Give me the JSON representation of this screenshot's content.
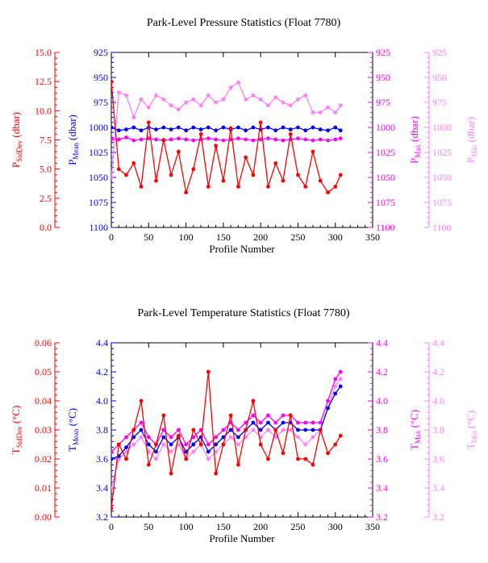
{
  "chart_data": [
    {
      "type": "line",
      "title": "Park-Level Pressure Statistics (Float 7780)",
      "xlabel": "Profile Number",
      "xlim": [
        0,
        350
      ],
      "xticks": [
        0,
        50,
        100,
        150,
        200,
        250,
        300,
        350
      ],
      "grid": false,
      "legend": "none",
      "axes": [
        {
          "key": "std",
          "side": "left-outer",
          "label_main": "P",
          "label_sub": "StdDev",
          "label_unit": " (dbar)",
          "range": [
            0,
            15
          ],
          "inverted": false,
          "ticks": [
            "0.0",
            "2.5",
            "5.0",
            "7.5",
            "10.0",
            "12.5",
            "15.0"
          ],
          "color": "#ff0000"
        },
        {
          "key": "mean",
          "side": "left-inner",
          "label_main": "P",
          "label_sub": "Mean",
          "label_unit": " (dbar)",
          "range": [
            925,
            1100
          ],
          "inverted": true,
          "ticks": [
            "925",
            "950",
            "975",
            "1000",
            "1025",
            "1050",
            "1075",
            "1100"
          ],
          "color": "#0000ff"
        },
        {
          "key": "max",
          "side": "right-inner",
          "label_main": "P",
          "label_sub": "Max",
          "label_unit": " (dbar)",
          "range": [
            925,
            1100
          ],
          "inverted": true,
          "ticks": [
            "925",
            "950",
            "975",
            "1000",
            "1025",
            "1050",
            "1075",
            "1100"
          ],
          "color": "#ff00ff"
        },
        {
          "key": "min",
          "side": "right-outer",
          "label_main": "P",
          "label_sub": "Min",
          "label_unit": " (dbar)",
          "range": [
            925,
            1100
          ],
          "inverted": true,
          "ticks": [
            "925",
            "950",
            "975",
            "1000",
            "1025",
            "1050",
            "1075",
            "1100"
          ],
          "color": "#ff80ff"
        }
      ],
      "series": [
        {
          "axis": "min",
          "color": "#ff80ff",
          "x": [
            0,
            10,
            20,
            30,
            40,
            50,
            60,
            70,
            80,
            90,
            100,
            110,
            120,
            130,
            140,
            150,
            160,
            170,
            180,
            190,
            200,
            210,
            220,
            230,
            240,
            250,
            260,
            270,
            280,
            290,
            300,
            307
          ],
          "values": [
            1050,
            965,
            968,
            990,
            972,
            980,
            968,
            972,
            978,
            982,
            975,
            972,
            978,
            968,
            975,
            972,
            960,
            955,
            972,
            968,
            972,
            978,
            970,
            975,
            978,
            972,
            968,
            985,
            985,
            980,
            985,
            978
          ]
        },
        {
          "axis": "mean",
          "color": "#0000ff",
          "x": [
            0,
            10,
            20,
            30,
            40,
            50,
            60,
            70,
            80,
            90,
            100,
            110,
            120,
            130,
            140,
            150,
            160,
            170,
            180,
            190,
            200,
            210,
            220,
            230,
            240,
            250,
            260,
            270,
            280,
            290,
            300,
            307
          ],
          "values": [
            1000,
            1003,
            1002,
            1000,
            1003,
            1000,
            1002,
            1000,
            1002,
            1000,
            1003,
            1000,
            1002,
            1000,
            1003,
            1000,
            1002,
            1000,
            1003,
            1000,
            1002,
            1000,
            1003,
            1000,
            1002,
            1000,
            1003,
            1000,
            1002,
            1003,
            1000,
            1003
          ]
        },
        {
          "axis": "max",
          "color": "#ff00ff",
          "x": [
            0,
            10,
            20,
            30,
            40,
            50,
            60,
            70,
            80,
            90,
            100,
            110,
            120,
            130,
            140,
            150,
            160,
            170,
            180,
            190,
            200,
            210,
            220,
            230,
            240,
            250,
            260,
            270,
            280,
            290,
            300,
            307
          ],
          "values": [
            1012,
            1012,
            1010,
            1013,
            1012,
            1011,
            1012,
            1013,
            1012,
            1011,
            1012,
            1013,
            1012,
            1011,
            1012,
            1013,
            1012,
            1011,
            1012,
            1013,
            1012,
            1011,
            1012,
            1013,
            1012,
            1011,
            1012,
            1013,
            1012,
            1013,
            1012,
            1011
          ]
        },
        {
          "axis": "std",
          "color": "#ff0000",
          "x": [
            0,
            10,
            20,
            30,
            40,
            50,
            60,
            70,
            80,
            90,
            100,
            110,
            120,
            130,
            140,
            150,
            160,
            170,
            180,
            190,
            200,
            210,
            220,
            230,
            240,
            250,
            260,
            270,
            280,
            290,
            300,
            307
          ],
          "values": [
            12.5,
            5.0,
            4.5,
            5.5,
            3.5,
            9.0,
            4.0,
            7.5,
            4.5,
            6.5,
            3.0,
            5.0,
            8.0,
            3.5,
            7.0,
            4.0,
            8.5,
            3.5,
            6.0,
            4.5,
            9.0,
            3.5,
            5.5,
            4.0,
            8.0,
            4.5,
            3.5,
            6.5,
            4.0,
            3.0,
            3.5,
            4.5
          ]
        }
      ]
    },
    {
      "type": "line",
      "title": "Park-Level Temperature Statistics (Float 7780)",
      "xlabel": "Profile Number",
      "xlim": [
        0,
        350
      ],
      "xticks": [
        0,
        50,
        100,
        150,
        200,
        250,
        300,
        350
      ],
      "grid": false,
      "legend": "none",
      "axes": [
        {
          "key": "std",
          "side": "left-outer",
          "label_main": "T",
          "label_sub": "StdDev",
          "label_unit": " (°C)",
          "range": [
            0,
            0.06
          ],
          "inverted": false,
          "ticks": [
            "0.00",
            "0.01",
            "0.02",
            "0.03",
            "0.04",
            "0.05",
            "0.06"
          ],
          "color": "#ff0000"
        },
        {
          "key": "mean",
          "side": "left-inner",
          "label_main": "T",
          "label_sub": "Mean",
          "label_unit": " (°C)",
          "range": [
            3.2,
            4.4
          ],
          "inverted": false,
          "ticks": [
            "3.2",
            "3.4",
            "3.6",
            "3.8",
            "4.0",
            "4.2",
            "4.4"
          ],
          "color": "#0000ff"
        },
        {
          "key": "max",
          "side": "right-inner",
          "label_main": "T",
          "label_sub": "Max",
          "label_unit": " (°C)",
          "range": [
            3.2,
            4.4
          ],
          "inverted": false,
          "ticks": [
            "3.2",
            "3.4",
            "3.6",
            "3.8",
            "4.0",
            "4.2",
            "4.4"
          ],
          "color": "#ff00ff"
        },
        {
          "key": "min",
          "side": "right-outer",
          "label_main": "T",
          "label_sub": "Min",
          "label_unit": " (°C)",
          "range": [
            3.2,
            4.4
          ],
          "inverted": false,
          "ticks": [
            "3.2",
            "3.4",
            "3.6",
            "3.8",
            "4.0",
            "4.2",
            "4.4"
          ],
          "color": "#ff80ff"
        }
      ],
      "series": [
        {
          "axis": "min",
          "color": "#ff80ff",
          "x": [
            0,
            10,
            20,
            30,
            40,
            50,
            60,
            70,
            80,
            90,
            100,
            110,
            120,
            130,
            140,
            150,
            160,
            170,
            180,
            190,
            200,
            210,
            220,
            230,
            240,
            250,
            260,
            270,
            280,
            290,
            300,
            307
          ],
          "values": [
            3.4,
            3.6,
            3.65,
            3.7,
            3.75,
            3.65,
            3.6,
            3.7,
            3.65,
            3.7,
            3.6,
            3.65,
            3.7,
            3.6,
            3.65,
            3.7,
            3.75,
            3.7,
            3.75,
            3.8,
            3.75,
            3.8,
            3.75,
            3.8,
            3.8,
            3.75,
            3.7,
            3.75,
            3.8,
            3.95,
            4.1,
            4.15
          ]
        },
        {
          "axis": "mean",
          "color": "#0000ff",
          "x": [
            0,
            10,
            20,
            30,
            40,
            50,
            60,
            70,
            80,
            90,
            100,
            110,
            120,
            130,
            140,
            150,
            160,
            170,
            180,
            190,
            200,
            210,
            220,
            230,
            240,
            250,
            260,
            270,
            280,
            290,
            300,
            307
          ],
          "values": [
            3.6,
            3.62,
            3.68,
            3.75,
            3.8,
            3.7,
            3.65,
            3.75,
            3.7,
            3.75,
            3.65,
            3.7,
            3.75,
            3.65,
            3.7,
            3.75,
            3.8,
            3.75,
            3.8,
            3.85,
            3.8,
            3.85,
            3.8,
            3.85,
            3.85,
            3.8,
            3.8,
            3.8,
            3.8,
            3.95,
            4.05,
            4.1
          ]
        },
        {
          "axis": "max",
          "color": "#ff00ff",
          "x": [
            0,
            10,
            20,
            30,
            40,
            50,
            60,
            70,
            80,
            90,
            100,
            110,
            120,
            130,
            140,
            150,
            160,
            170,
            180,
            190,
            200,
            210,
            220,
            230,
            240,
            250,
            260,
            270,
            280,
            290,
            300,
            307
          ],
          "values": [
            3.65,
            3.7,
            3.75,
            3.8,
            3.85,
            3.75,
            3.7,
            3.8,
            3.75,
            3.8,
            3.7,
            3.75,
            3.8,
            3.7,
            3.75,
            3.8,
            3.85,
            3.8,
            3.85,
            3.9,
            3.85,
            3.9,
            3.85,
            3.9,
            3.9,
            3.85,
            3.85,
            3.85,
            3.85,
            4.0,
            4.15,
            4.2
          ]
        },
        {
          "axis": "std",
          "color": "#ff0000",
          "x": [
            0,
            10,
            20,
            30,
            40,
            50,
            60,
            70,
            80,
            90,
            100,
            110,
            120,
            130,
            140,
            150,
            160,
            170,
            180,
            190,
            200,
            210,
            220,
            230,
            240,
            250,
            260,
            270,
            280,
            290,
            300,
            307
          ],
          "values": [
            0.003,
            0.025,
            0.02,
            0.03,
            0.04,
            0.018,
            0.025,
            0.035,
            0.015,
            0.028,
            0.02,
            0.03,
            0.025,
            0.05,
            0.015,
            0.025,
            0.035,
            0.018,
            0.03,
            0.04,
            0.025,
            0.02,
            0.03,
            0.022,
            0.035,
            0.02,
            0.02,
            0.018,
            0.03,
            0.022,
            0.025,
            0.028
          ]
        }
      ]
    }
  ]
}
